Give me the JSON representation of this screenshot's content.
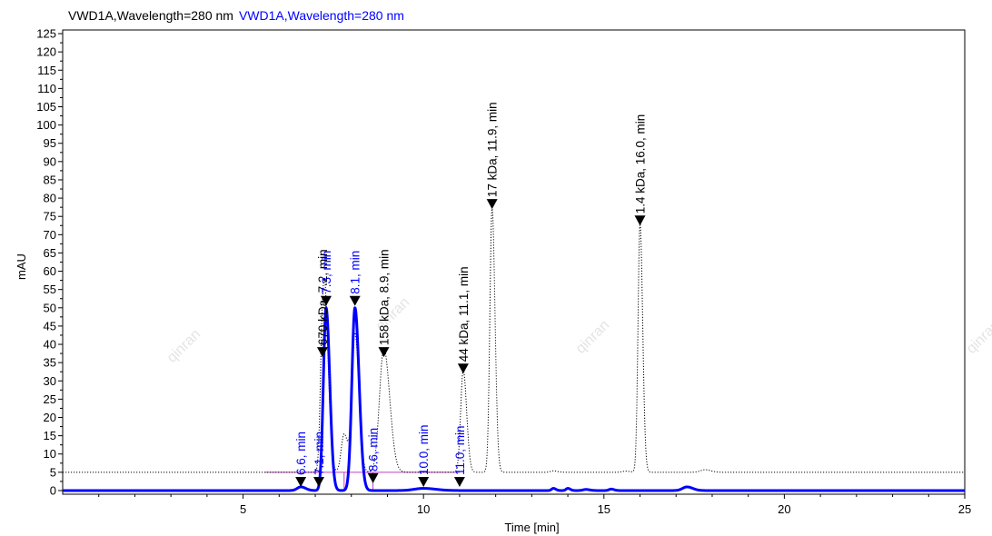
{
  "header": {
    "trace1_label": "VWD1A,Wavelength=280 nm",
    "trace2_label": "VWD1A,Wavelength=280 nm"
  },
  "watermark": "qinran",
  "chart_data": {
    "type": "line",
    "title": "",
    "xlabel": "Time [min]",
    "ylabel": "mAU",
    "xlim": [
      0,
      25
    ],
    "ylim": [
      -1,
      126
    ],
    "xticks": [
      5,
      10,
      15,
      20,
      25
    ],
    "yticks": [
      0,
      5,
      10,
      15,
      20,
      25,
      30,
      35,
      40,
      45,
      50,
      55,
      60,
      65,
      70,
      75,
      80,
      85,
      90,
      95,
      100,
      105,
      110,
      115,
      120,
      125
    ],
    "grid": false,
    "series": [
      {
        "name": "VWD1A,Wavelength=280 nm",
        "color": "#000000",
        "style": "dotted",
        "baseline": 5,
        "baseline_range": [
          0,
          25
        ],
        "peaks": [
          {
            "t": 7.2,
            "height": 36.0,
            "width": 0.06
          },
          {
            "t": 7.3,
            "height": 30.0,
            "width": 0.07
          },
          {
            "t": 7.8,
            "height": 10.5,
            "width": 0.08
          },
          {
            "t": 8.1,
            "height": 38.0,
            "width": 0.08
          },
          {
            "t": 8.9,
            "height": 34.0,
            "width": 0.12
          },
          {
            "t": 11.1,
            "height": 28.0,
            "width": 0.07
          },
          {
            "t": 11.9,
            "height": 72.5,
            "width": 0.06
          },
          {
            "t": 13.6,
            "height": 0.4,
            "width": 0.08
          },
          {
            "t": 15.6,
            "height": 0.3,
            "width": 0.1
          },
          {
            "t": 16.0,
            "height": 68.0,
            "width": 0.055
          },
          {
            "t": 17.8,
            "height": 0.7,
            "width": 0.12
          }
        ],
        "markers": [
          {
            "t": 7.2,
            "y": 36.5,
            "label": "670 kDa, 7.2, min"
          },
          {
            "t": 8.9,
            "y": 36.5,
            "label": "158 kDa, 8.9, min"
          },
          {
            "t": 11.1,
            "y": 32.0,
            "label": "44 kDa, 11.1, min"
          },
          {
            "t": 11.9,
            "y": 77.0,
            "label": "17 kDa, 11.9, min"
          },
          {
            "t": 16.0,
            "y": 72.5,
            "label": "1.4 kDa, 16.0, min"
          }
        ]
      },
      {
        "name": "VWD1A,Wavelength=280 nm",
        "color": "#0000ff",
        "style": "solid",
        "baseline": 0,
        "peaks": [
          {
            "t": 6.6,
            "height": 1.0,
            "width": 0.1
          },
          {
            "t": 7.3,
            "height": 50.0,
            "width": 0.075
          },
          {
            "t": 8.1,
            "height": 50.0,
            "width": 0.085
          },
          {
            "t": 10.0,
            "height": 0.6,
            "width": 0.25
          },
          {
            "t": 13.6,
            "height": 0.6,
            "width": 0.05
          },
          {
            "t": 14.0,
            "height": 0.6,
            "width": 0.05
          },
          {
            "t": 14.5,
            "height": 0.3,
            "width": 0.08
          },
          {
            "t": 15.2,
            "height": 0.4,
            "width": 0.06
          },
          {
            "t": 17.3,
            "height": 1.0,
            "width": 0.12
          }
        ],
        "markers": [
          {
            "t": 6.6,
            "y": 1.0,
            "label": "6.6, min"
          },
          {
            "t": 7.1,
            "y": 1.0,
            "label": "7.1, min"
          },
          {
            "t": 7.3,
            "y": 50.5,
            "label": "7.3, min"
          },
          {
            "t": 8.1,
            "y": 50.5,
            "label": "8.1, min"
          },
          {
            "t": 8.6,
            "y": 2.0,
            "label": "8.6, min"
          },
          {
            "t": 10.0,
            "y": 1.0,
            "label": "10.0, min"
          },
          {
            "t": 11.0,
            "y": 1.0,
            "label": "11.0, min"
          }
        ],
        "integration_lines": [
          {
            "from": 6.6,
            "to": 11.0,
            "y": 5
          },
          {
            "from": 5.6,
            "to": 7.2,
            "y": 5
          }
        ],
        "integration_color": "#c040c0",
        "integration_drops": [
          7.8,
          8.6
        ]
      }
    ]
  }
}
